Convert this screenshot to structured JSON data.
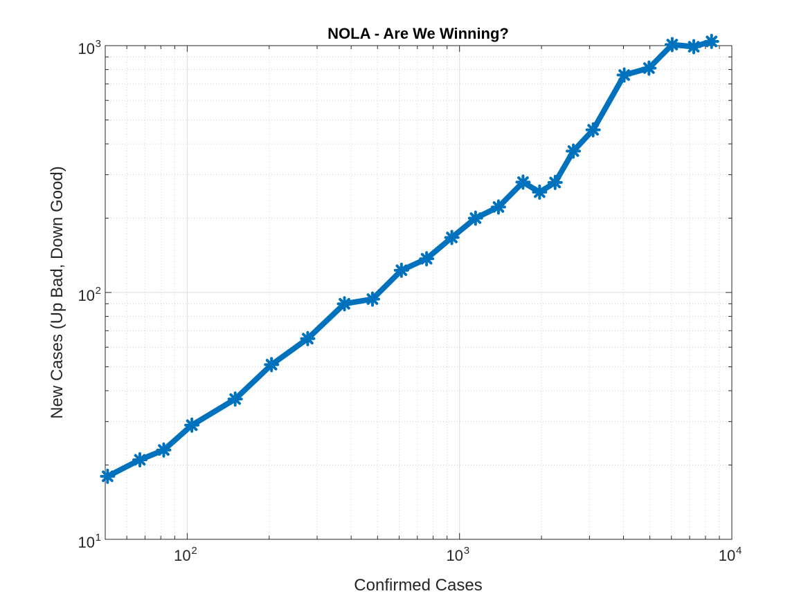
{
  "chart_data": {
    "type": "line",
    "title": "NOLA - Are We Winning?",
    "xlabel": "Confirmed Cases",
    "ylabel": "New Cases (Up Bad, Down Good)",
    "xscale": "log",
    "yscale": "log",
    "xlim": [
      50,
      10000
    ],
    "ylim": [
      10,
      1000
    ],
    "grid": true,
    "minor_grid": true,
    "legend": "none",
    "series_color": "#0072BD",
    "axis_color": "#262626",
    "x_ticks": [
      {
        "base": "10",
        "exp": "2",
        "value": 100
      },
      {
        "base": "10",
        "exp": "3",
        "value": 1000
      },
      {
        "base": "10",
        "exp": "4",
        "value": 10000
      }
    ],
    "y_ticks": [
      {
        "base": "10",
        "exp": "1",
        "value": 10
      },
      {
        "base": "10",
        "exp": "2",
        "value": 100
      },
      {
        "base": "10",
        "exp": "3",
        "value": 1000
      }
    ],
    "series": [
      {
        "x": [
          51,
          67,
          82,
          104,
          150,
          204,
          277,
          378,
          479,
          612,
          757,
          937,
          1145,
          1390,
          1711,
          1968,
          2244,
          2618,
          3095,
          4025,
          4962,
          6039,
          7248,
          8424
        ],
        "y": [
          18,
          21,
          23,
          29,
          37,
          51,
          65,
          90,
          94,
          123,
          137,
          167,
          200,
          222,
          280,
          255,
          279,
          374,
          456,
          760,
          811,
          1010,
          990,
          1040
        ]
      }
    ]
  }
}
